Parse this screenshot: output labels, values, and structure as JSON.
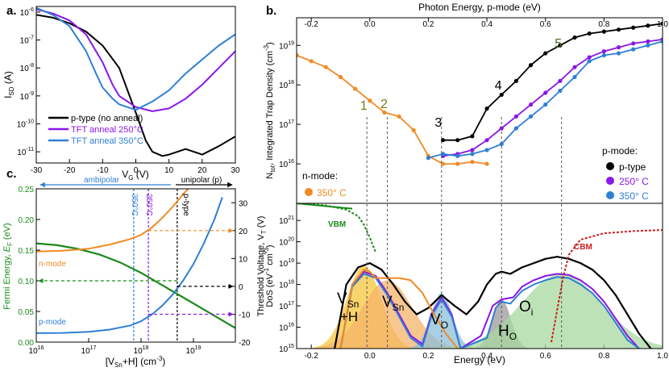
{
  "colors": {
    "black": "#000000",
    "purple": "#8a16e8",
    "blue": "#2f7fd4",
    "orange": "#f08a24",
    "green": "#1a8a1a",
    "red": "#c81e1e",
    "olive": "#7a7a14",
    "olive_dark": "#4a6a1a",
    "yellow_fill": "#f7c53c",
    "orange_fill": "#f4b46a",
    "green_fill": "#a8d8a0",
    "teal_fill": "#8cc0d8",
    "gray_fill": "#9a9a9a"
  },
  "chart_data": [
    {
      "id": "a",
      "type": "line",
      "panel_label": "a.",
      "xlabel": "V",
      "xlabel_sub": "G",
      "xlabel_unit": " (V)",
      "ylabel": "I",
      "ylabel_sub": "SD",
      "ylabel_unit": " (A)",
      "xlim": [
        -30,
        30
      ],
      "ylim_log10": [
        -11.4,
        -5.8
      ],
      "x_ticks": [
        -30,
        -20,
        -10,
        0,
        10,
        20,
        30
      ],
      "x_tick_labels": [
        "-30",
        "-20",
        "-10",
        "0",
        "10",
        "20",
        "30"
      ],
      "y_ticks_log10": [
        -11,
        -10,
        -9,
        -8,
        -7,
        -6
      ],
      "y_tick_mant": [
        "10",
        "10",
        "10",
        "10",
        "10",
        "10"
      ],
      "y_tick_exp": [
        "-11",
        "-10",
        "-9",
        "-8",
        "-7",
        "-6"
      ],
      "legend": [
        "p-type (no anneal)",
        "TFT anneal 250°C",
        "TFT anneal 350°C"
      ],
      "series": [
        {
          "name": "p-type (no anneal)",
          "color": "#000000",
          "x": [
            -30,
            -25,
            -20,
            -15,
            -10,
            -5,
            0,
            3,
            5,
            8,
            10,
            15,
            20,
            25,
            30
          ],
          "log10_y": [
            -6.1,
            -6.2,
            -6.4,
            -6.7,
            -7.2,
            -8.0,
            -9.6,
            -10.6,
            -11.0,
            -11.15,
            -11.1,
            -10.9,
            -11.1,
            -10.8,
            -10.45
          ]
        },
        {
          "name": "TFT anneal 250°C",
          "color": "#8a16e8",
          "x": [
            -30,
            -25,
            -20,
            -15,
            -10,
            -7,
            -5,
            0,
            5,
            10,
            15,
            20,
            25,
            30
          ],
          "log10_y": [
            -5.9,
            -6.05,
            -6.3,
            -6.8,
            -7.8,
            -8.6,
            -9.0,
            -9.4,
            -9.55,
            -9.45,
            -9.1,
            -8.6,
            -8.0,
            -7.4
          ]
        },
        {
          "name": "TFT anneal 350°C",
          "color": "#2f7fd4",
          "x": [
            -30,
            -25,
            -20,
            -15,
            -12,
            -10,
            -7,
            -5,
            0,
            5,
            10,
            15,
            20,
            25,
            30
          ],
          "log10_y": [
            -5.85,
            -6.1,
            -6.5,
            -7.4,
            -8.2,
            -8.7,
            -9.1,
            -9.3,
            -9.5,
            -9.2,
            -8.8,
            -8.2,
            -7.7,
            -7.2,
            -6.8
          ]
        }
      ]
    },
    {
      "id": "b_top",
      "type": "scatter",
      "panel_label": "b.",
      "top_axis_label": "Photon Energy, p-mode (eV)",
      "xlim": [
        -0.25,
        1.0
      ],
      "top_ticks": [
        -0.2,
        0,
        0.2,
        0.4,
        0.6,
        0.8,
        1.0
      ],
      "top_tick_labels": [
        "-0.2",
        "0.0",
        "0.2",
        "0.4",
        "0.6",
        "0.8",
        "1.0"
      ],
      "ylabel": "N",
      "ylabel_sub": "tot",
      "ylabel_rest": ", Integrated Trap Density (cm",
      "ylabel_exp": "-3",
      "ylabel_close": ")",
      "ylim_log10": [
        15.0,
        19.7
      ],
      "y_ticks_log10": [
        16,
        17,
        18,
        19
      ],
      "y_tick_mant": [
        "10",
        "10",
        "10",
        "10"
      ],
      "y_tick_exp": [
        "16",
        "17",
        "18",
        "19"
      ],
      "n_mode_title": "n-mode:",
      "n_mode_entry": "350° C",
      "p_mode_title": "p-mode:",
      "p_mode_entries": [
        "p-type",
        "250° C",
        "350° C"
      ],
      "peaks": [
        {
          "label": "1",
          "x": -0.01,
          "color": "#7a7a14"
        },
        {
          "label": "2",
          "x": 0.06,
          "color": "#7a7a14"
        },
        {
          "label": "3",
          "x": 0.245,
          "color": "#000000"
        },
        {
          "label": "4",
          "x": 0.45,
          "color": "#000000"
        },
        {
          "label": "5",
          "x": 0.655,
          "color": "#4a6a1a"
        }
      ],
      "series": [
        {
          "name": "n-mode 350° C",
          "color": "#f08a24",
          "x": [
            -0.25,
            -0.2,
            -0.15,
            -0.1,
            -0.05,
            0,
            0.05,
            0.1,
            0.15,
            0.2,
            0.25,
            0.3,
            0.35,
            0.4
          ],
          "log10_y": [
            18.75,
            18.6,
            18.45,
            18.2,
            17.9,
            17.6,
            17.3,
            17.2,
            16.85,
            16.2,
            16.0,
            16.0,
            16.05,
            16.0
          ]
        },
        {
          "name": "p-type",
          "color": "#000000",
          "x": [
            0.25,
            0.3,
            0.35,
            0.4,
            0.45,
            0.5,
            0.55,
            0.6,
            0.65,
            0.7,
            0.75,
            0.8,
            0.85,
            0.9,
            0.95,
            1.0
          ],
          "log10_y": [
            16.6,
            16.6,
            16.7,
            17.4,
            17.75,
            18.1,
            18.5,
            18.8,
            19.0,
            19.2,
            19.3,
            19.35,
            19.4,
            19.45,
            19.5,
            19.55
          ]
        },
        {
          "name": "p-mode 250° C",
          "color": "#8a16e8",
          "x": [
            0.25,
            0.3,
            0.35,
            0.4,
            0.45,
            0.5,
            0.55,
            0.6,
            0.65,
            0.7,
            0.75,
            0.8,
            0.85,
            0.9,
            0.95,
            1.0
          ],
          "log10_y": [
            16.2,
            16.25,
            16.35,
            16.6,
            16.9,
            17.2,
            17.5,
            17.8,
            18.1,
            18.45,
            18.7,
            18.85,
            18.95,
            19.05,
            19.1,
            19.15
          ]
        },
        {
          "name": "p-mode 350° C",
          "color": "#2f7fd4",
          "x": [
            0.2,
            0.25,
            0.3,
            0.35,
            0.4,
            0.45,
            0.5,
            0.55,
            0.6,
            0.65,
            0.7,
            0.75,
            0.8,
            0.85,
            0.9,
            0.95,
            1.0
          ],
          "log10_y": [
            16.15,
            16.25,
            16.2,
            16.25,
            16.35,
            16.5,
            16.9,
            17.2,
            17.5,
            17.85,
            18.2,
            18.6,
            18.75,
            18.8,
            18.9,
            19.0,
            19.1
          ]
        }
      ]
    },
    {
      "id": "b_bottom",
      "type": "area",
      "xlabel": "Energy (eV)",
      "xlim": [
        -0.25,
        1.0
      ],
      "x_ticks": [
        -0.2,
        0,
        0.2,
        0.4,
        0.6,
        0.8,
        1.0
      ],
      "x_tick_labels": [
        "-0.2",
        "0.0",
        "0.2",
        "0.4",
        "0.6",
        "0.8",
        "1.0"
      ],
      "ylabel": "DoS (eV",
      "ylabel_exp1": "-1",
      "ylabel_mid": " cm",
      "ylabel_exp2": "-3",
      "ylabel_close": ")",
      "ylim_log10": [
        15.0,
        21.8
      ],
      "y_ticks_log10": [
        15,
        16,
        17,
        18,
        19,
        20,
        21
      ],
      "y_tick_mant": [
        "10",
        "10",
        "10",
        "10",
        "10",
        "10",
        "10"
      ],
      "y_tick_exp": [
        "15",
        "16",
        "17",
        "18",
        "19",
        "20",
        "21"
      ],
      "vbm_label": "VBM",
      "cbm_label": "CBM",
      "states": [
        {
          "label": "V",
          "sub": "Sn",
          "extra": "+H",
          "center": -0.02,
          "log10_peak": 18.9,
          "sigma": 0.055,
          "color": "#f7c53c"
        },
        {
          "label": "V",
          "sub": "Sn",
          "extra": "",
          "center": 0.06,
          "log10_peak": 18.2,
          "sigma": 0.08,
          "color": "#f4b46a"
        },
        {
          "label": "V",
          "sub": "O",
          "extra": "",
          "center": 0.245,
          "log10_peak": 17.6,
          "sigma": 0.035,
          "color": "#8cc0d8"
        },
        {
          "label": "H",
          "sub": "O",
          "extra": "",
          "center": 0.45,
          "log10_peak": 17.3,
          "sigma": 0.03,
          "color": "#9a9a9a"
        },
        {
          "label": "O",
          "sub": "i",
          "extra": "",
          "center": 0.655,
          "log10_peak": 18.5,
          "sigma": 0.13,
          "color": "#a8d8a0"
        }
      ],
      "vbm": {
        "x": [
          -0.25,
          -0.15,
          -0.08,
          -0.04,
          -0.02,
          0.0,
          0.02
        ],
        "log10_y": [
          21.8,
          21.7,
          21.5,
          21.2,
          20.8,
          20.2,
          19.5
        ]
      },
      "cbm": {
        "x": [
          0.62,
          0.64,
          0.66,
          0.68,
          0.72,
          0.8,
          0.9,
          1.0
        ],
        "log10_y": [
          15.3,
          16.8,
          18.3,
          19.4,
          20.1,
          20.4,
          20.5,
          20.55
        ]
      },
      "envelopes": [
        {
          "name": "p-type",
          "color": "#000000",
          "x": [
            -0.12,
            -0.08,
            -0.04,
            0.0,
            0.04,
            0.08,
            0.12,
            0.16,
            0.2,
            0.245,
            0.29,
            0.33,
            0.37,
            0.4,
            0.43,
            0.45,
            0.48,
            0.52,
            0.56,
            0.6,
            0.64,
            0.68,
            0.72,
            0.76,
            0.8,
            0.84,
            0.88,
            0.92,
            0.96
          ],
          "log10_y": [
            15.0,
            18.0,
            18.8,
            19.0,
            18.7,
            18.0,
            17.2,
            16.6,
            16.9,
            17.5,
            17.0,
            16.6,
            17.2,
            18.0,
            18.5,
            18.6,
            18.5,
            18.8,
            19.0,
            19.2,
            19.3,
            19.2,
            19.0,
            18.7,
            18.2,
            17.5,
            16.6,
            15.7,
            15.0
          ]
        },
        {
          "name": "250° C",
          "color": "#8a16e8",
          "x": [
            -0.1,
            -0.06,
            -0.02,
            0.02,
            0.06,
            0.1,
            0.14,
            0.18,
            0.21,
            0.245,
            0.28,
            0.31,
            0.38,
            0.42,
            0.45,
            0.49,
            0.52,
            0.56,
            0.6,
            0.64,
            0.68,
            0.72,
            0.76,
            0.8,
            0.84,
            0.88,
            0.92
          ],
          "log10_y": [
            15.0,
            18.0,
            18.6,
            18.4,
            17.6,
            16.6,
            15.6,
            15.2,
            16.6,
            17.4,
            16.6,
            15.0,
            15.6,
            17.0,
            17.3,
            17.4,
            17.9,
            18.2,
            18.4,
            18.5,
            18.45,
            18.2,
            17.8,
            17.2,
            16.4,
            15.6,
            15.0
          ]
        },
        {
          "name": "350° C",
          "color": "#2f7fd4",
          "x": [
            -0.1,
            -0.06,
            -0.02,
            0.02,
            0.06,
            0.1,
            0.14,
            0.18,
            0.21,
            0.245,
            0.28,
            0.31,
            0.4,
            0.43,
            0.45,
            0.48,
            0.52,
            0.56,
            0.6,
            0.64,
            0.68,
            0.72,
            0.76,
            0.8,
            0.84,
            0.88,
            0.92
          ],
          "log10_y": [
            15.0,
            17.9,
            18.5,
            18.3,
            17.5,
            16.5,
            15.5,
            15.1,
            16.5,
            17.3,
            16.5,
            15.0,
            15.5,
            16.9,
            17.2,
            17.1,
            17.7,
            18.0,
            18.2,
            18.35,
            18.3,
            18.0,
            17.6,
            17.0,
            16.2,
            15.4,
            15.0
          ]
        },
        {
          "name": "n-mode 350° C",
          "color": "#f08a24",
          "x": [
            -0.1,
            -0.06,
            -0.02,
            0.0,
            0.02,
            0.06,
            0.1,
            0.14,
            0.18,
            0.22,
            0.26,
            0.3
          ],
          "log10_y": [
            15.0,
            18.0,
            18.7,
            18.6,
            18.3,
            18.3,
            18.3,
            18.2,
            17.6,
            16.6,
            15.7,
            15.0
          ]
        }
      ]
    },
    {
      "id": "c",
      "type": "line",
      "panel_label": "c.",
      "xlabel": "[V",
      "xlabel_sub": "Sn",
      "xlabel_rest": "+H] (cm",
      "xlabel_exp": "-3",
      "xlabel_close": ")",
      "xlim_log10": [
        16.0,
        19.8
      ],
      "x_ticks_log10": [
        16,
        17,
        18,
        19
      ],
      "x_tick_mant": [
        "10",
        "10",
        "10",
        "10"
      ],
      "x_tick_exp": [
        "16",
        "17",
        "18",
        "19"
      ],
      "ylabel_left": "Fermi Energy, ",
      "ylabel_left_sym": "E",
      "ylabel_left_sub": "F",
      "ylabel_left_unit": " (eV)",
      "ylim_left": [
        0.0,
        0.25
      ],
      "y_ticks_left": [
        "0.00",
        "0.05",
        "0.10",
        "0.15",
        "0.20",
        "0.25"
      ],
      "y_ticks_left_values": [
        0.0,
        0.05,
        0.1,
        0.15,
        0.2,
        0.25
      ],
      "ylabel_right": "Threshold Voltage, V",
      "ylabel_right_sub": "T",
      "ylabel_right_unit": " (V)",
      "ylim_right": [
        -20,
        35
      ],
      "y_ticks_right": [
        "-20",
        "-10",
        "0",
        "10",
        "20",
        "30"
      ],
      "y_ticks_right_values": [
        -20,
        -10,
        0,
        10,
        20,
        30
      ],
      "ambipolar_label": "ambipolar",
      "unipolar_label": "unipolar (p)",
      "n_mode_label": "n-mode",
      "p_mode_label": "p-mode",
      "vlines": [
        {
          "label": "350°C",
          "log10_x": 17.86,
          "color": "#2f7fd4"
        },
        {
          "label": "250°C",
          "log10_x": 18.14,
          "color": "#8a16e8"
        },
        {
          "label": "p-type",
          "log10_x": 18.69,
          "color": "#000000"
        }
      ],
      "fermi": {
        "color": "#1a8a1a",
        "log10_x": [
          16.0,
          16.4,
          16.8,
          17.2,
          17.6,
          18.0,
          18.4,
          18.8,
          19.2,
          19.6,
          19.8
        ],
        "y": [
          0.161,
          0.158,
          0.152,
          0.143,
          0.13,
          0.113,
          0.093,
          0.073,
          0.053,
          0.033,
          0.023
        ]
      },
      "n_mode_curve": {
        "color": "#f08a24",
        "log10_x": [
          16.0,
          16.5,
          17.0,
          17.4,
          17.8,
          18.0,
          18.2,
          18.4,
          18.6,
          18.8,
          19.0,
          19.1
        ],
        "vt": [
          12.5,
          12.8,
          13.5,
          15.0,
          17.0,
          18.5,
          21.0,
          24.5,
          28.5,
          33.0,
          37.0,
          39.0
        ]
      },
      "p_mode_curve": {
        "color": "#2f7fd4",
        "log10_x": [
          16.0,
          16.5,
          17.0,
          17.4,
          17.8,
          18.0,
          18.2,
          18.4,
          18.6,
          18.8,
          19.0,
          19.2,
          19.4,
          19.55
        ],
        "vt": [
          -16.8,
          -16.7,
          -16.3,
          -15.5,
          -14.0,
          -12.5,
          -10.2,
          -7.0,
          -3.0,
          2.0,
          8.0,
          15.5,
          24.0,
          32.0
        ]
      },
      "arrows": [
        {
          "log10_x": 18.14,
          "vt": 20.0,
          "direction": "right",
          "color": "#f08a24"
        },
        {
          "log10_x": 18.69,
          "vt": 0.0,
          "direction": "right",
          "color": "#000000"
        },
        {
          "log10_x": 18.14,
          "vt": -10.0,
          "direction": "right",
          "color": "#8a16e8"
        },
        {
          "log10_x": 18.69,
          "vt": 0.1,
          "direction": "left",
          "color": "#1a8a1a",
          "axis": "left"
        }
      ]
    }
  ]
}
